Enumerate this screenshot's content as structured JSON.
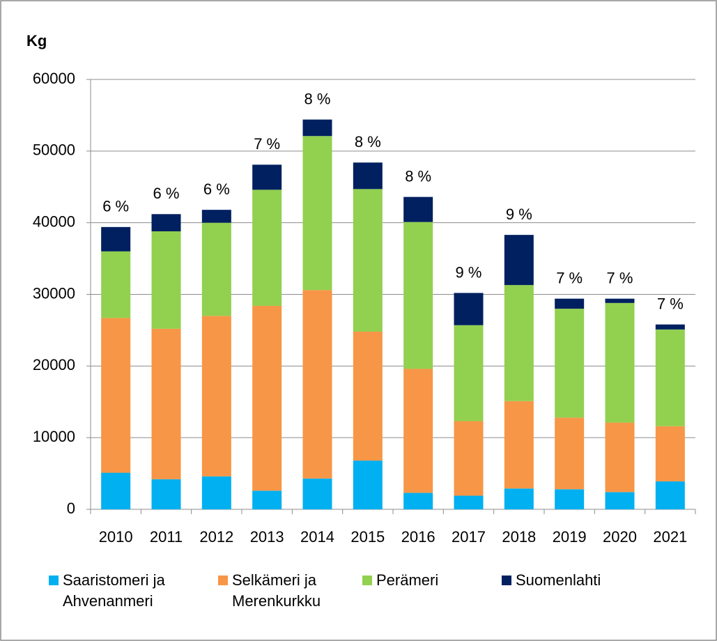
{
  "chart_data": {
    "type": "stacked_bar",
    "y_label": "Kg",
    "categories": [
      "2010",
      "2011",
      "2012",
      "2013",
      "2014",
      "2015",
      "2016",
      "2017",
      "2018",
      "2019",
      "2020",
      "2021"
    ],
    "series": [
      {
        "name": "Saaristomeri ja Ahvenanmeri",
        "color": "#00b0f0",
        "values": [
          5100,
          4200,
          4600,
          2600,
          4300,
          6800,
          2300,
          1900,
          2900,
          2800,
          2400,
          3900
        ]
      },
      {
        "name": "Selkämeri ja Merenkurkku",
        "color": "#f79646",
        "values": [
          21600,
          21000,
          22400,
          25800,
          26300,
          18000,
          17300,
          10400,
          12200,
          10000,
          9700,
          7700
        ]
      },
      {
        "name": "Perämeri",
        "color": "#92d050",
        "values": [
          9300,
          13600,
          13000,
          16200,
          21500,
          19900,
          20500,
          13400,
          16200,
          15200,
          16700,
          13500
        ]
      },
      {
        "name": "Suomenlahti",
        "color": "#002060",
        "values": [
          3400,
          2400,
          1800,
          3500,
          2300,
          3700,
          3500,
          4500,
          7000,
          1400,
          600,
          700
        ]
      }
    ],
    "bar_labels": [
      "6 %",
      "6 %",
      "6 %",
      "7 %",
      "8 %",
      "8 %",
      "8 %",
      "9 %",
      "9 %",
      "7 %",
      "7 %",
      "7 %"
    ],
    "ylim": [
      0,
      60000
    ],
    "yticks": [
      0,
      10000,
      20000,
      30000,
      40000,
      50000,
      60000
    ],
    "grid": true
  }
}
